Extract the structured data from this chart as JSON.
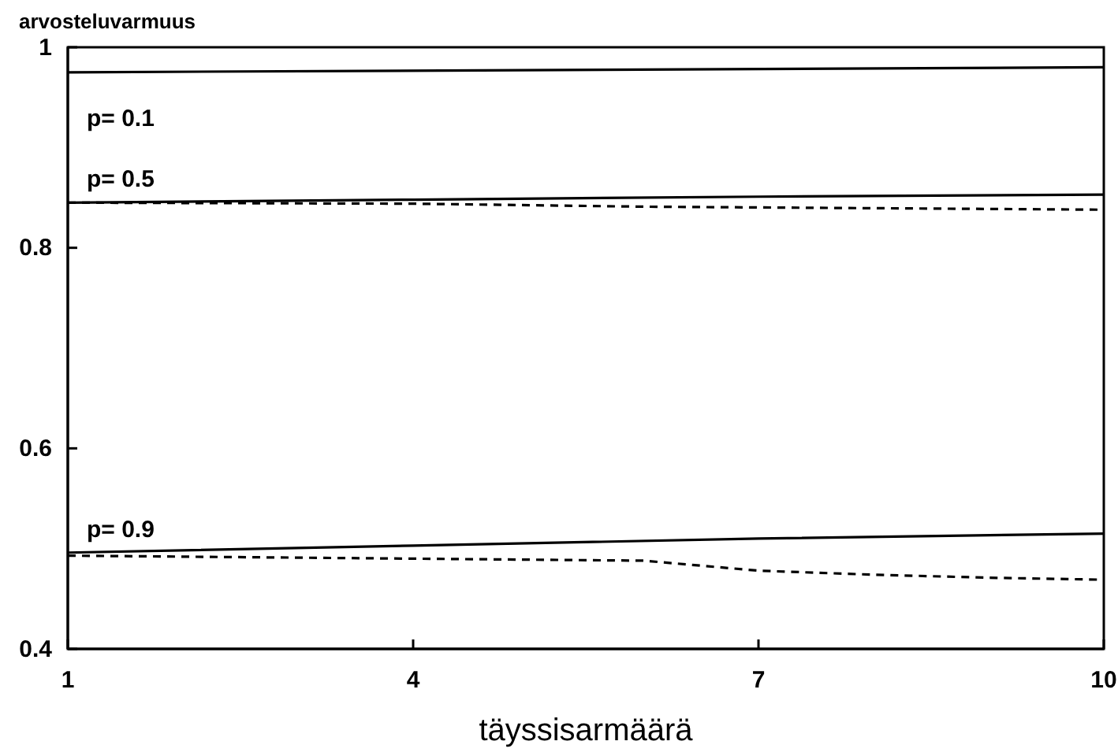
{
  "chart_data": {
    "type": "line",
    "ylabel": "arvosteluvarmuus",
    "xlabel": "täyssisarmäärä",
    "xlim": [
      1,
      10
    ],
    "ylim": [
      0.4,
      1
    ],
    "xticks": [
      1,
      4,
      7,
      10
    ],
    "yticks": [
      0.4,
      0.6,
      0.8,
      1
    ],
    "grid": false,
    "marker": "none",
    "series": [
      {
        "name": "p= 0.1",
        "color": "#000000",
        "line_style": "solid",
        "x": [
          1,
          10
        ],
        "values": [
          0.975,
          0.98
        ]
      },
      {
        "name": "p= 0.5",
        "color": "#000000",
        "line_style": "solid",
        "x": [
          1,
          4,
          7,
          10
        ],
        "values": [
          0.845,
          0.848,
          0.851,
          0.853
        ]
      },
      {
        "color": "#000000",
        "line_style": "dashed",
        "x": [
          1,
          4,
          6,
          10
        ],
        "values": [
          0.845,
          0.844,
          0.841,
          0.838
        ]
      },
      {
        "name": "p= 0.9",
        "color": "#000000",
        "line_style": "solid",
        "x": [
          1,
          4,
          7,
          10
        ],
        "values": [
          0.496,
          0.503,
          0.51,
          0.515
        ]
      },
      {
        "color": "#000000",
        "line_style": "dashed",
        "x": [
          1,
          2,
          3,
          4,
          5,
          6,
          6.5,
          7,
          8,
          9,
          10
        ],
        "values": [
          0.493,
          0.492,
          0.491,
          0.49,
          0.489,
          0.488,
          0.483,
          0.478,
          0.474,
          0.471,
          0.469
        ]
      }
    ]
  }
}
